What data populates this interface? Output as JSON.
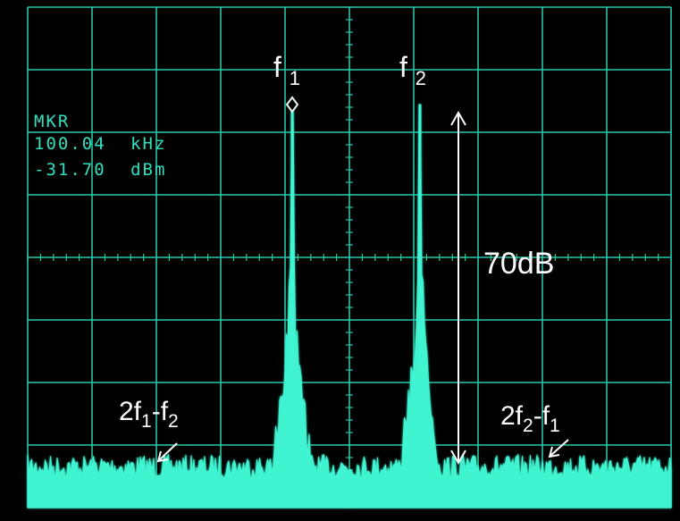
{
  "colors": {
    "trace": "#3ff5d2",
    "grid": "#27c9a8",
    "marker_text": "#2fe0c0",
    "annotation": "#ffffff",
    "background": "#000000"
  },
  "marker": {
    "label": "MKR",
    "frequency": "100.04",
    "frequency_unit": "kHz",
    "level": "-31.70",
    "level_unit": "dBm"
  },
  "chart_data": {
    "type": "line",
    "grid": true,
    "grid_divisions": {
      "x": 10,
      "y": 8
    },
    "noise_floor_db_below_peak": 70,
    "peaks": [
      {
        "label_base": "f",
        "label_sub": "1",
        "relative_x": 0.0
      },
      {
        "label_base": "f",
        "label_sub": "2",
        "relative_x": 1.0
      }
    ],
    "intermod_products": [
      {
        "label": [
          "2f",
          "1",
          "-f",
          "2"
        ],
        "relative_x": -1.0
      },
      {
        "label": [
          "2f",
          "2",
          "-f",
          "1"
        ],
        "relative_x": 2.0
      }
    ],
    "difference_annotation": "70dB"
  }
}
